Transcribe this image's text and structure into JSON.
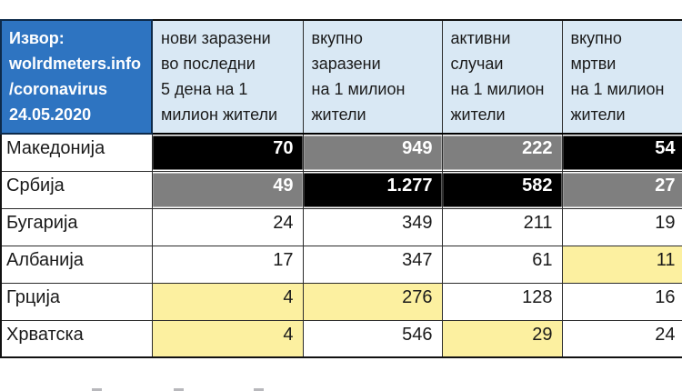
{
  "source": {
    "lines": "Извор:\nwolrdmeters.info\n/coronavirus\n24.05.2020"
  },
  "table": {
    "column_headers": [
      "нови заразени\nво последни\n5 дена на 1\nмилион жители",
      "вкупно\nзаразени\nна 1 милион\nжители",
      "активни\nслучаи\nна 1 милион\nжители",
      "вкупно\nмртви\nна 1 милион\nжители"
    ],
    "rows": [
      {
        "country": "Македонија",
        "cells": [
          {
            "value": "70",
            "bg": "black"
          },
          {
            "value": "949",
            "bg": "gray"
          },
          {
            "value": "222",
            "bg": "gray"
          },
          {
            "value": "54",
            "bg": "black"
          }
        ]
      },
      {
        "country": "Србија",
        "cells": [
          {
            "value": "49",
            "bg": "gray"
          },
          {
            "value": "1.277",
            "bg": "black"
          },
          {
            "value": "582",
            "bg": "black"
          },
          {
            "value": "27",
            "bg": "gray"
          }
        ]
      },
      {
        "country": "Бугарија",
        "cells": [
          {
            "value": "24",
            "bg": "white"
          },
          {
            "value": "349",
            "bg": "white"
          },
          {
            "value": "211",
            "bg": "white"
          },
          {
            "value": "19",
            "bg": "white"
          }
        ]
      },
      {
        "country": "Албанија",
        "cells": [
          {
            "value": "17",
            "bg": "white"
          },
          {
            "value": "347",
            "bg": "white"
          },
          {
            "value": "61",
            "bg": "white"
          },
          {
            "value": "11",
            "bg": "yellow"
          }
        ]
      },
      {
        "country": "Грција",
        "cells": [
          {
            "value": "4",
            "bg": "yellow"
          },
          {
            "value": "276",
            "bg": "yellow"
          },
          {
            "value": "128",
            "bg": "white"
          },
          {
            "value": "16",
            "bg": "white"
          }
        ]
      },
      {
        "country": "Хрватска",
        "cells": [
          {
            "value": "4",
            "bg": "yellow"
          },
          {
            "value": "546",
            "bg": "white"
          },
          {
            "value": "29",
            "bg": "yellow"
          },
          {
            "value": "24",
            "bg": "white"
          }
        ]
      }
    ]
  },
  "chart_data": {
    "type": "table",
    "title": "",
    "source_note": "Извор: wolrdmeters.info /coronavirus 24.05.2020",
    "columns": [
      "нови заразени во последни 5 дена на 1 милион жители",
      "вкупно заразени на 1 милион жители",
      "активни случаи на 1 милион жители",
      "вкупно мртви на 1 милион жители"
    ],
    "rows": [
      {
        "country": "Македонија",
        "values": [
          70,
          949,
          222,
          54
        ]
      },
      {
        "country": "Србија",
        "values": [
          49,
          1277,
          582,
          27
        ]
      },
      {
        "country": "Бугарија",
        "values": [
          24,
          349,
          211,
          19
        ]
      },
      {
        "country": "Албанија",
        "values": [
          17,
          347,
          61,
          11
        ]
      },
      {
        "country": "Грција",
        "values": [
          4,
          276,
          128,
          16
        ]
      },
      {
        "country": "Хрватска",
        "values": [
          4,
          546,
          29,
          24
        ]
      }
    ]
  },
  "colors": {
    "source_bg": "#2e74c1",
    "header_bg": "#d9e8f4",
    "black_cell": "#000000",
    "gray_cell": "#7f7f7f",
    "yellow_cell": "#fcf0a0",
    "border": "#2b2b2b"
  }
}
